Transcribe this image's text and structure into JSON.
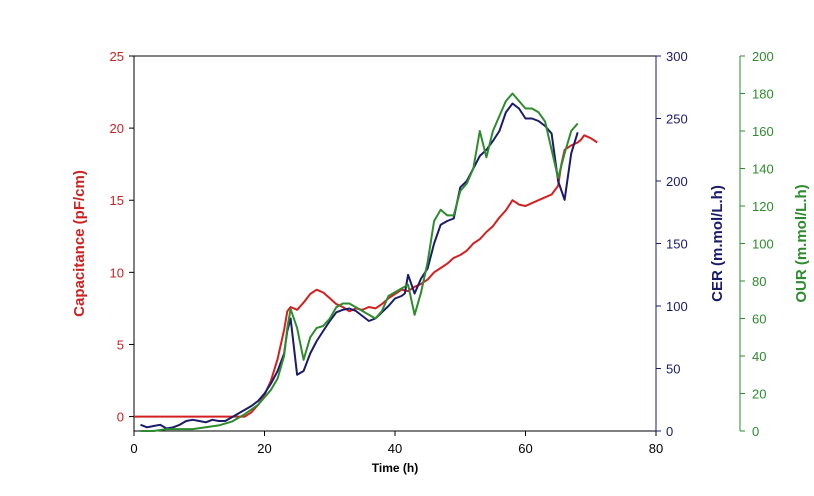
{
  "chart_data": {
    "type": "line",
    "title": "",
    "xlabel": "Time (h)",
    "xlim": [
      0,
      80
    ],
    "x_ticks": [
      0,
      20,
      40,
      60,
      80
    ],
    "grid": false,
    "axes": {
      "left": {
        "label": "Capacitance (pF/cm)",
        "lim": [
          -1,
          25
        ],
        "ticks": [
          0,
          5,
          10,
          15,
          20,
          25
        ],
        "color": "#cc2222"
      },
      "right1": {
        "label": "CER (m.mol/L.h)",
        "lim": [
          0,
          300
        ],
        "ticks": [
          0,
          50,
          100,
          150,
          200,
          250,
          300
        ],
        "color": "#1b1b6b"
      },
      "right2": {
        "label": "OUR (m.mol/L.h)",
        "lim": [
          0,
          200
        ],
        "ticks": [
          0,
          20,
          40,
          60,
          80,
          100,
          120,
          140,
          160,
          180,
          200
        ],
        "color": "#2e8b2e"
      }
    },
    "series": [
      {
        "axis": "left",
        "color": "#d42020",
        "points": [
          [
            0,
            0
          ],
          [
            5,
            0
          ],
          [
            10,
            0
          ],
          [
            15,
            0
          ],
          [
            17,
            0
          ],
          [
            18,
            0.3
          ],
          [
            19,
            0.8
          ],
          [
            20,
            1.5
          ],
          [
            21,
            2.5
          ],
          [
            22,
            4
          ],
          [
            23,
            6
          ],
          [
            23.5,
            7.3
          ],
          [
            24,
            7.6
          ],
          [
            25,
            7.4
          ],
          [
            26,
            7.9
          ],
          [
            27,
            8.5
          ],
          [
            28,
            8.8
          ],
          [
            29,
            8.6
          ],
          [
            30,
            8.2
          ],
          [
            31,
            7.8
          ],
          [
            32,
            7.6
          ],
          [
            33,
            7.3
          ],
          [
            34,
            7.5
          ],
          [
            35,
            7.4
          ],
          [
            36,
            7.6
          ],
          [
            37,
            7.5
          ],
          [
            38,
            7.8
          ],
          [
            39,
            8.2
          ],
          [
            40,
            8.5
          ],
          [
            41,
            8.8
          ],
          [
            42,
            8.7
          ],
          [
            43,
            9.0
          ],
          [
            44,
            9.2
          ],
          [
            45,
            9.5
          ],
          [
            46,
            10.0
          ],
          [
            47,
            10.3
          ],
          [
            48,
            10.6
          ],
          [
            49,
            11.0
          ],
          [
            50,
            11.2
          ],
          [
            51,
            11.5
          ],
          [
            52,
            12.0
          ],
          [
            53,
            12.3
          ],
          [
            54,
            12.8
          ],
          [
            55,
            13.2
          ],
          [
            56,
            13.8
          ],
          [
            57,
            14.3
          ],
          [
            58,
            15.0
          ],
          [
            59,
            14.7
          ],
          [
            60,
            14.6
          ],
          [
            61,
            14.8
          ],
          [
            62,
            15.0
          ],
          [
            63,
            15.2
          ],
          [
            64,
            15.4
          ],
          [
            65,
            16.0
          ],
          [
            65.5,
            17.5
          ],
          [
            66,
            18.5
          ],
          [
            67,
            18.8
          ],
          [
            68,
            19.0
          ],
          [
            68.5,
            19.2
          ],
          [
            69,
            19.5
          ],
          [
            70,
            19.3
          ],
          [
            71,
            19.0
          ]
        ]
      },
      {
        "axis": "right1",
        "color": "#1b1b6b",
        "points": [
          [
            1,
            5
          ],
          [
            2,
            3
          ],
          [
            3,
            4
          ],
          [
            4,
            5
          ],
          [
            5,
            2
          ],
          [
            6,
            3
          ],
          [
            7,
            5
          ],
          [
            8,
            8
          ],
          [
            9,
            9
          ],
          [
            10,
            8
          ],
          [
            11,
            7
          ],
          [
            12,
            9
          ],
          [
            13,
            8
          ],
          [
            14,
            8
          ],
          [
            15,
            11
          ],
          [
            16,
            14
          ],
          [
            17,
            17
          ],
          [
            18,
            20
          ],
          [
            19,
            24
          ],
          [
            20,
            30
          ],
          [
            21,
            38
          ],
          [
            22,
            48
          ],
          [
            23,
            62
          ],
          [
            23.5,
            80
          ],
          [
            24,
            90
          ],
          [
            25,
            45
          ],
          [
            26,
            48
          ],
          [
            27,
            62
          ],
          [
            28,
            72
          ],
          [
            29,
            80
          ],
          [
            30,
            88
          ],
          [
            31,
            95
          ],
          [
            32,
            97
          ],
          [
            33,
            98
          ],
          [
            34,
            96
          ],
          [
            35,
            92
          ],
          [
            36,
            88
          ],
          [
            37,
            90
          ],
          [
            38,
            95
          ],
          [
            39,
            100
          ],
          [
            40,
            106
          ],
          [
            41,
            108
          ],
          [
            41.5,
            110
          ],
          [
            42,
            125
          ],
          [
            43,
            110
          ],
          [
            44,
            122
          ],
          [
            45,
            130
          ],
          [
            46,
            150
          ],
          [
            47,
            165
          ],
          [
            48,
            168
          ],
          [
            49,
            170
          ],
          [
            50,
            195
          ],
          [
            51,
            200
          ],
          [
            52,
            210
          ],
          [
            53,
            220
          ],
          [
            54,
            225
          ],
          [
            55,
            232
          ],
          [
            56,
            240
          ],
          [
            57,
            255
          ],
          [
            58,
            262
          ],
          [
            59,
            258
          ],
          [
            60,
            250
          ],
          [
            61,
            250
          ],
          [
            62,
            248
          ],
          [
            63,
            244
          ],
          [
            64,
            238
          ],
          [
            65,
            200
          ],
          [
            66,
            185
          ],
          [
            67,
            222
          ],
          [
            68,
            239
          ]
        ]
      },
      {
        "axis": "right2",
        "color": "#2e8b2e",
        "points": [
          [
            1,
            0
          ],
          [
            3,
            0
          ],
          [
            5,
            1
          ],
          [
            7,
            1
          ],
          [
            9,
            1
          ],
          [
            11,
            2
          ],
          [
            13,
            3
          ],
          [
            15,
            5
          ],
          [
            17,
            9
          ],
          [
            19,
            14
          ],
          [
            20,
            18
          ],
          [
            21,
            22
          ],
          [
            22,
            28
          ],
          [
            23,
            40
          ],
          [
            23.5,
            55
          ],
          [
            24,
            65
          ],
          [
            25,
            55
          ],
          [
            26,
            38
          ],
          [
            27,
            50
          ],
          [
            28,
            55
          ],
          [
            29,
            56
          ],
          [
            30,
            60
          ],
          [
            31,
            66
          ],
          [
            32,
            68
          ],
          [
            33,
            68
          ],
          [
            34,
            66
          ],
          [
            35,
            64
          ],
          [
            36,
            62
          ],
          [
            37,
            60
          ],
          [
            38,
            64
          ],
          [
            39,
            72
          ],
          [
            40,
            74
          ],
          [
            41,
            76
          ],
          [
            42,
            78
          ],
          [
            43,
            62
          ],
          [
            44,
            74
          ],
          [
            45,
            90
          ],
          [
            46,
            112
          ],
          [
            47,
            118
          ],
          [
            48,
            115
          ],
          [
            49,
            115
          ],
          [
            50,
            128
          ],
          [
            51,
            132
          ],
          [
            52,
            140
          ],
          [
            53,
            160
          ],
          [
            54,
            146
          ],
          [
            55,
            160
          ],
          [
            56,
            168
          ],
          [
            57,
            176
          ],
          [
            58,
            180
          ],
          [
            59,
            176
          ],
          [
            60,
            172
          ],
          [
            61,
            172
          ],
          [
            62,
            170
          ],
          [
            63,
            165
          ],
          [
            64,
            150
          ],
          [
            65,
            135
          ],
          [
            66,
            148
          ],
          [
            67,
            160
          ],
          [
            68,
            164
          ]
        ]
      }
    ]
  }
}
